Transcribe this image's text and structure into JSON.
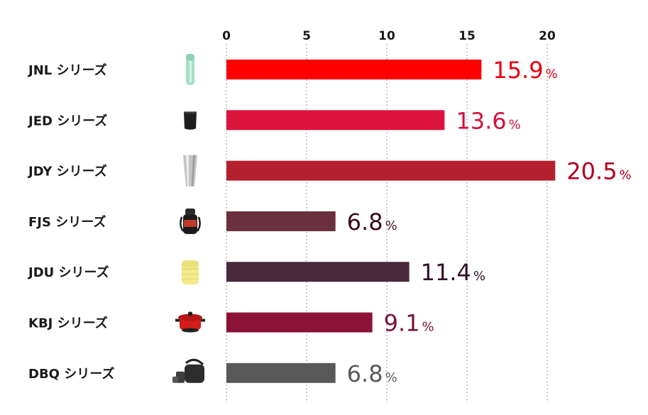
{
  "chart_data": {
    "type": "bar",
    "orientation": "horizontal",
    "categories": [
      "JNL シリーズ",
      "JED シリーズ",
      "JDY シリーズ",
      "FJS シリーズ",
      "JDU シリーズ",
      "KBJ シリーズ",
      "DBQ シリーズ"
    ],
    "values": [
      15.9,
      13.6,
      20.5,
      6.8,
      11.4,
      9.1,
      6.8
    ],
    "value_labels": [
      "15.9",
      "13.6",
      "20.5",
      "6.8",
      "11.4",
      "9.1",
      "6.8"
    ],
    "value_suffix": "%",
    "xlim": [
      0,
      20
    ],
    "xticks": [
      0,
      5,
      10,
      15,
      20
    ],
    "tick_labels": [
      "0",
      "5",
      "10",
      "15",
      "20"
    ],
    "axis_position": "top",
    "grid": "vertical-dotted",
    "bar_colors": [
      "#ff0000",
      "#dc143c",
      "#b5202e",
      "#6a3040",
      "#4a2a3c",
      "#8c1238",
      "#595959"
    ],
    "label_colors": [
      "#e60012",
      "#d0103a",
      "#b00020",
      "#3d0a20",
      "#2e0f26",
      "#7a1038",
      "#595959"
    ],
    "icons": [
      "slim-thermos-bottle-icon",
      "black-tumbler-icon",
      "stainless-tumbler-icon",
      "sports-bottle-icon",
      "yellow-food-jar-icon",
      "red-cooking-pot-icon",
      "lunch-box-set-icon"
    ]
  }
}
